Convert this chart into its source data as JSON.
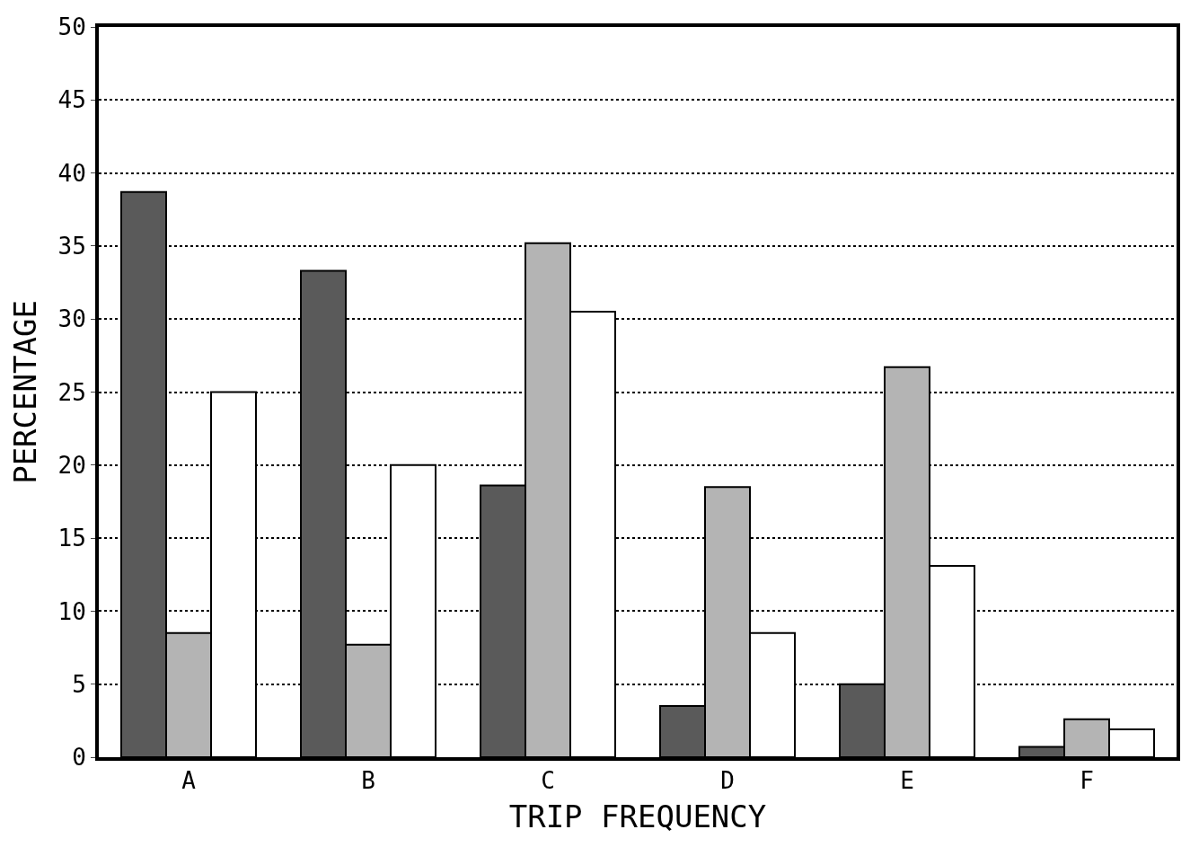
{
  "chart_data": {
    "type": "bar",
    "xlabel": "TRIP FREQUENCY",
    "ylabel": "PERCENTAGE",
    "categories": [
      "A",
      "B",
      "C",
      "D",
      "E",
      "F"
    ],
    "series": [
      {
        "color": "#5a5a5a",
        "values": [
          38.7,
          33.3,
          18.6,
          3.5,
          5.0,
          0.7
        ]
      },
      {
        "color": "#b4b4b4",
        "values": [
          8.5,
          7.7,
          35.2,
          18.5,
          26.7,
          2.6
        ]
      },
      {
        "color": "#ffffff",
        "values": [
          25.0,
          20.0,
          30.5,
          8.5,
          13.1,
          1.9
        ]
      }
    ],
    "ylim": [
      0,
      50
    ],
    "yticks": [
      0,
      5,
      10,
      15,
      20,
      25,
      30,
      35,
      40,
      45,
      50
    ],
    "grid": "y"
  }
}
